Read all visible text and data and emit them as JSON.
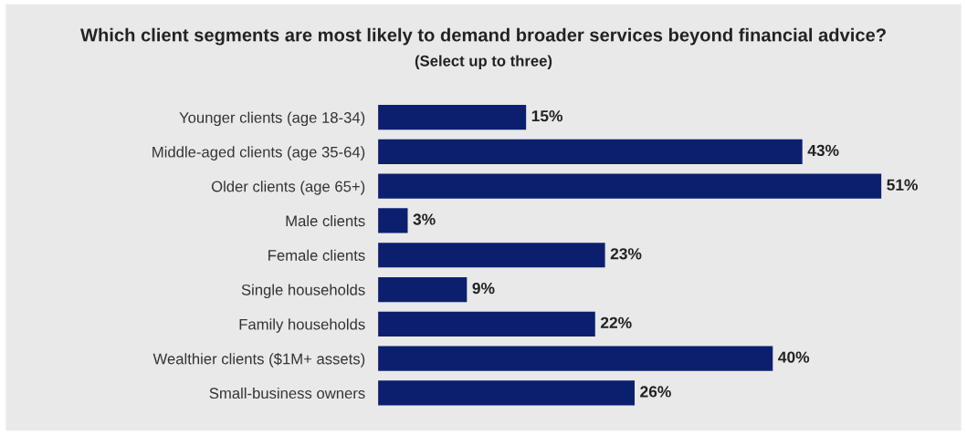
{
  "chart_data": {
    "type": "bar",
    "orientation": "horizontal",
    "title": "Which client segments are most likely to demand broader services beyond financial advice?",
    "subtitle": "(Select up to three)",
    "categories": [
      "Younger clients (age 18-34)",
      "Middle-aged clients (age 35-64)",
      "Older clients (age 65+)",
      "Male clients",
      "Female clients",
      "Single households",
      "Family households",
      "Wealthier clients ($1M+ assets)",
      "Small-business owners"
    ],
    "values": [
      15,
      43,
      51,
      3,
      23,
      9,
      22,
      40,
      26
    ],
    "value_labels": [
      "15%",
      "43%",
      "51%",
      "3%",
      "23%",
      "9%",
      "22%",
      "40%",
      "26%"
    ],
    "color": "#0c1f6f",
    "tick_labels": "y",
    "grid": false,
    "legend": false
  }
}
